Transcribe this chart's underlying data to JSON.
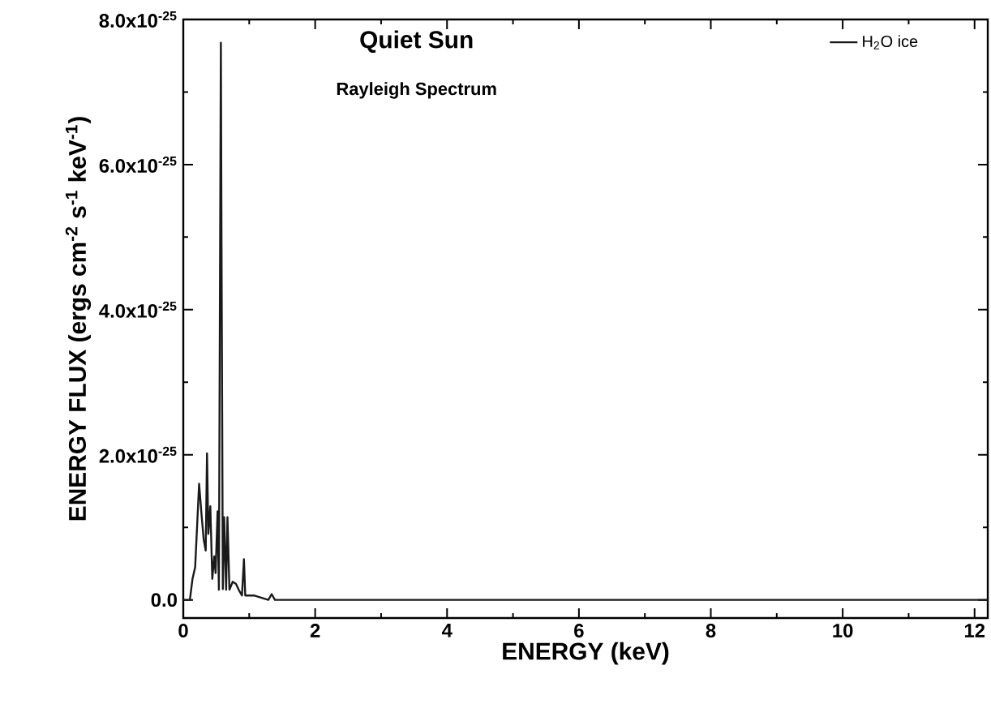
{
  "chart_data": {
    "type": "line",
    "title": "Quiet Sun",
    "subtitle": "Rayleigh Spectrum",
    "xlabel": "ENERGY (keV)",
    "ylabel": "ENERGY FLUX (ergs cm$^{-2}$ s$^{-1}$ keV$^{-1}$)",
    "xlim": [
      0,
      12.2
    ],
    "ylim": [
      -2.5e-26,
      8e-25
    ],
    "xticks": [
      0,
      {
        "value": 1,
        "label": null
      },
      2,
      {
        "value": 3,
        "label": null
      },
      4,
      {
        "value": 5,
        "label": null
      },
      6,
      {
        "value": 7,
        "label": null
      },
      8,
      {
        "value": 9,
        "label": null
      },
      10,
      {
        "value": 11,
        "label": null
      },
      12
    ],
    "yticks": [
      {
        "value": 0,
        "label": "0.0"
      },
      {
        "value": 1e-25,
        "label": null
      },
      {
        "value": 2e-25,
        "label": "2.0x10$^{-25}$"
      },
      {
        "value": 3e-25,
        "label": null
      },
      {
        "value": 4e-25,
        "label": "4.0x10$^{-25}$"
      },
      {
        "value": 5e-25,
        "label": null
      },
      {
        "value": 6e-25,
        "label": "6.0x10$^{-25}$"
      },
      {
        "value": 7e-25,
        "label": null
      },
      {
        "value": 8e-25,
        "label": "8.0x10$^{-25}$"
      }
    ],
    "legend": "top right",
    "grid": false,
    "series": [
      {
        "name": "H$_{2}$O ice",
        "color": "#1a1a1a",
        "x": [
          0,
          0.1,
          0.14,
          0.18,
          0.24,
          0.28,
          0.31,
          0.34,
          0.36,
          0.38,
          0.41,
          0.44,
          0.47,
          0.49,
          0.52,
          0.54,
          0.57,
          0.58,
          0.6,
          0.62,
          0.65,
          0.67,
          0.7,
          0.75,
          0.8,
          0.84,
          0.89,
          0.92,
          0.94,
          1.08,
          1.29,
          1.34,
          1.39,
          1.8,
          12.2
        ],
        "values": [
          0,
          0,
          2.9e-26,
          4.5e-26,
          1.6e-25,
          1.14e-25,
          8.3e-26,
          6.8e-26,
          2.02e-25,
          9.1e-26,
          1.29e-25,
          2.9e-26,
          6e-26,
          3.7e-26,
          1.22e-25,
          1.4e-26,
          7.68e-25,
          4.85e-25,
          1.5e-26,
          1.14e-25,
          1.4e-26,
          1.14e-25,
          1.4e-26,
          2.5e-26,
          2.2e-26,
          1.4e-26,
          6e-27,
          5.6e-26,
          6e-27,
          6e-27,
          0,
          8e-27,
          0,
          0,
          0
        ]
      }
    ]
  }
}
